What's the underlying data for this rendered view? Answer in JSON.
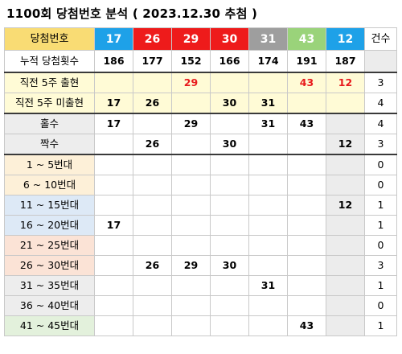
{
  "title": "1100회 당첨번호 분석 ( 2023.12.30 추첨 )",
  "colors": {
    "header_label_bg": "#f9dc74",
    "ball_17": "#1ea1e8",
    "ball_26": "#ee1b1b",
    "ball_29": "#ee1b1b",
    "ball_30": "#ee1b1b",
    "ball_31": "#9e9e9e",
    "ball_43": "#9ad37a",
    "ball_12": "#1ea1e8",
    "red_text": "#e8191b",
    "range_1_10": "#fdf0d8",
    "range_11_20": "#dde9f6",
    "range_21_30": "#fbe3d6",
    "range_31_40": "#ededed",
    "range_41_45": "#e3f1dc"
  },
  "header": {
    "label": "당첨번호",
    "numbers": [
      "17",
      "26",
      "29",
      "30",
      "31",
      "43",
      "12"
    ],
    "count_label": "건수"
  },
  "rows": [
    {
      "label": "누적 당첨횟수",
      "cells": [
        "186",
        "177",
        "152",
        "166",
        "174",
        "191",
        "187"
      ],
      "count": ""
    },
    {
      "label": "직전 5주 출현",
      "cells": [
        "",
        "",
        "29",
        "",
        "",
        "43",
        "12"
      ],
      "count": "3"
    },
    {
      "label": "직전 5주 미출현",
      "cells": [
        "17",
        "26",
        "",
        "30",
        "31",
        "",
        ""
      ],
      "count": "4"
    },
    {
      "label": "홀수",
      "cells": [
        "17",
        "",
        "29",
        "",
        "31",
        "43",
        ""
      ],
      "count": "4"
    },
    {
      "label": "짝수",
      "cells": [
        "",
        "26",
        "",
        "30",
        "",
        "",
        "12"
      ],
      "count": "3"
    },
    {
      "label": "1 ~ 5번대",
      "cells": [
        "",
        "",
        "",
        "",
        "",
        "",
        ""
      ],
      "count": "0"
    },
    {
      "label": "6 ~ 10번대",
      "cells": [
        "",
        "",
        "",
        "",
        "",
        "",
        ""
      ],
      "count": "0"
    },
    {
      "label": "11 ~ 15번대",
      "cells": [
        "",
        "",
        "",
        "",
        "",
        "",
        "12"
      ],
      "count": "1"
    },
    {
      "label": "16 ~ 20번대",
      "cells": [
        "17",
        "",
        "",
        "",
        "",
        "",
        ""
      ],
      "count": "1"
    },
    {
      "label": "21 ~ 25번대",
      "cells": [
        "",
        "",
        "",
        "",
        "",
        "",
        ""
      ],
      "count": "0"
    },
    {
      "label": "26 ~ 30번대",
      "cells": [
        "",
        "26",
        "29",
        "30",
        "",
        "",
        ""
      ],
      "count": "3"
    },
    {
      "label": "31 ~ 35번대",
      "cells": [
        "",
        "",
        "",
        "",
        "31",
        "",
        ""
      ],
      "count": "1"
    },
    {
      "label": "36 ~ 40번대",
      "cells": [
        "",
        "",
        "",
        "",
        "",
        "",
        ""
      ],
      "count": "0"
    },
    {
      "label": "41 ~ 45번대",
      "cells": [
        "",
        "",
        "",
        "",
        "",
        "43",
        ""
      ],
      "count": "1"
    }
  ]
}
